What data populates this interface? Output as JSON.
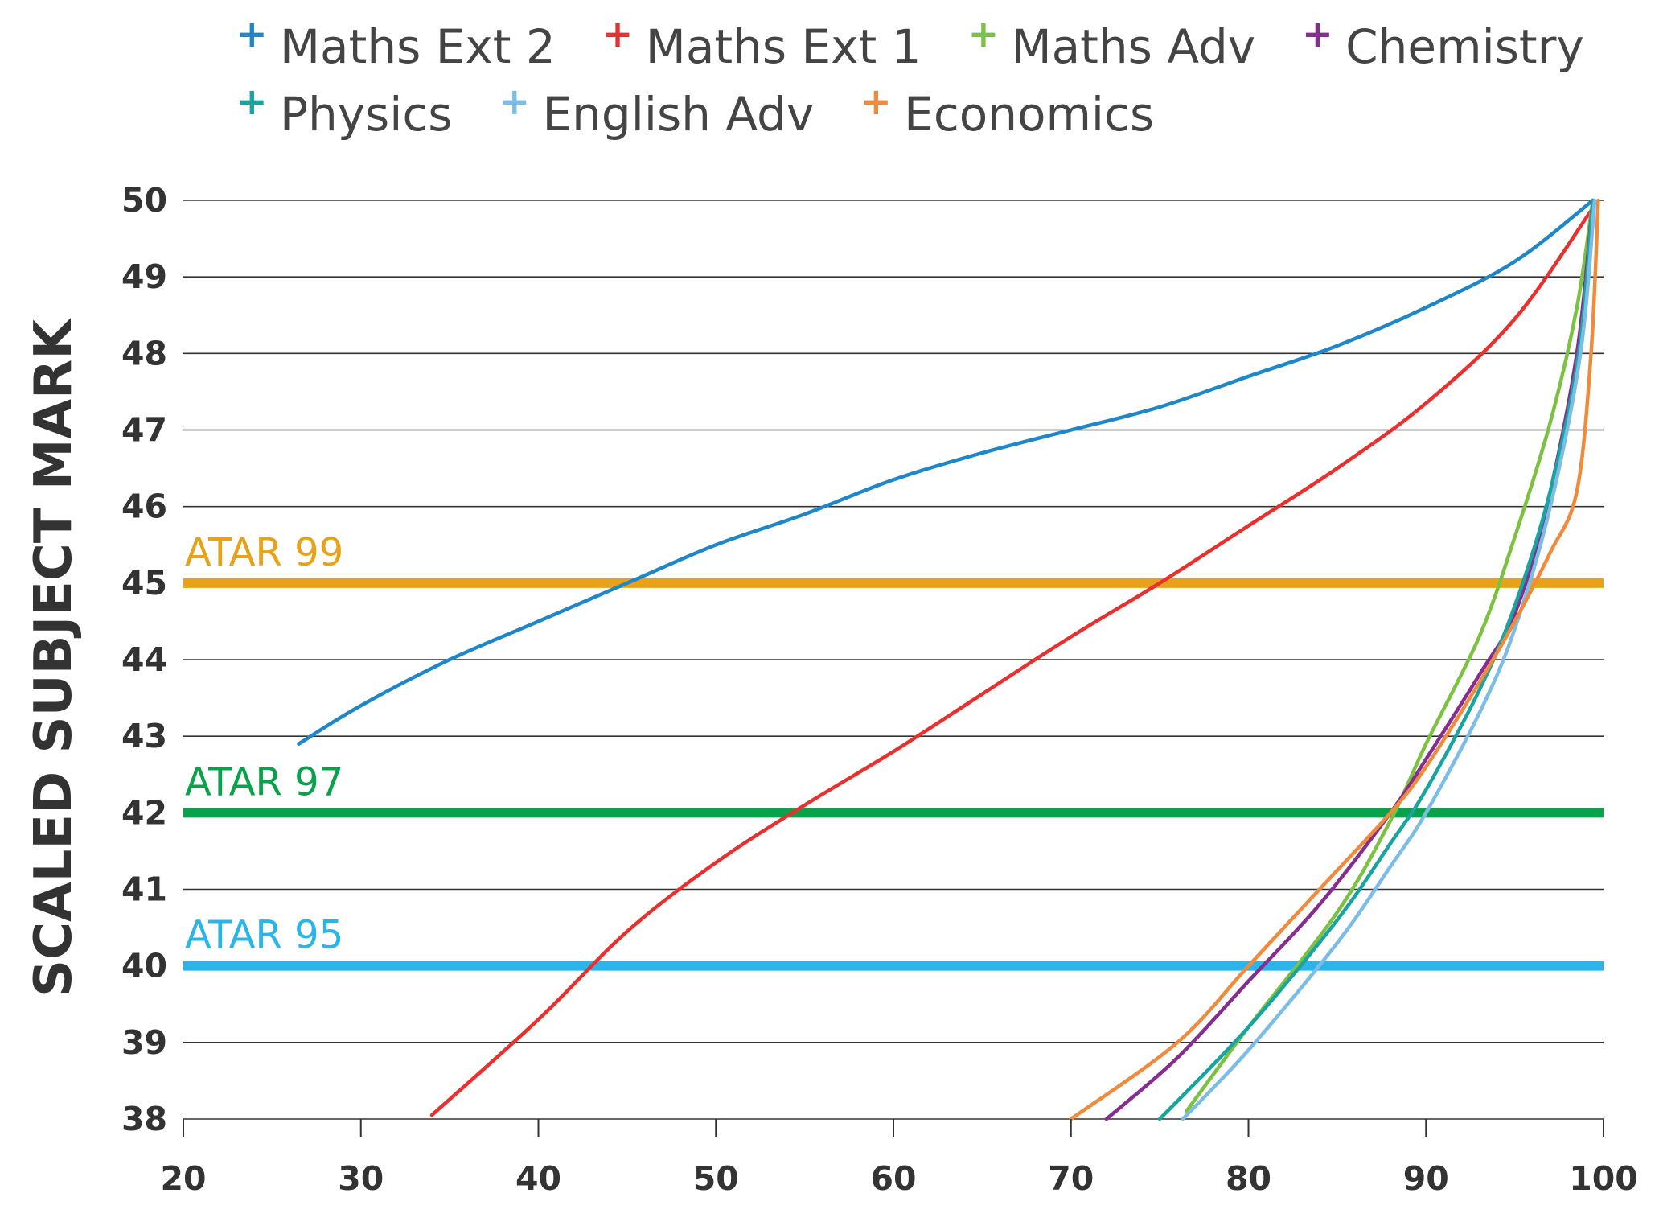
{
  "chart_data": {
    "type": "line",
    "title": "",
    "xlabel": "",
    "ylabel": "SCALED SUBJECT MARK",
    "xlim": [
      20,
      100
    ],
    "ylim": [
      38,
      50
    ],
    "x_ticks": [
      20,
      30,
      40,
      50,
      60,
      70,
      80,
      90,
      100
    ],
    "y_ticks": [
      38,
      39,
      40,
      41,
      42,
      43,
      44,
      45,
      46,
      47,
      48,
      49,
      50
    ],
    "grid": "horizontal",
    "legend_position": "top",
    "reference_lines": [
      {
        "label": "ATAR 99",
        "y": 45,
        "color": "#e8a21a"
      },
      {
        "label": "ATAR 97",
        "y": 42,
        "color": "#0aa14b"
      },
      {
        "label": "ATAR 95",
        "y": 40,
        "color": "#2bb4ea"
      }
    ],
    "series": [
      {
        "name": "Maths Ext 2",
        "color": "#1f87c9",
        "points": [
          [
            26.5,
            42.9
          ],
          [
            30,
            43.4
          ],
          [
            35,
            44.0
          ],
          [
            40,
            44.5
          ],
          [
            45,
            45.0
          ],
          [
            50,
            45.5
          ],
          [
            55,
            45.9
          ],
          [
            60,
            46.35
          ],
          [
            65,
            46.7
          ],
          [
            70,
            47.0
          ],
          [
            75,
            47.3
          ],
          [
            80,
            47.7
          ],
          [
            85,
            48.1
          ],
          [
            90,
            48.6
          ],
          [
            95,
            49.2
          ],
          [
            99.4,
            50.0
          ]
        ]
      },
      {
        "name": "Maths Ext 1",
        "color": "#e8312f",
        "points": [
          [
            34,
            38.05
          ],
          [
            40,
            39.3
          ],
          [
            45,
            40.45
          ],
          [
            50,
            41.35
          ],
          [
            55,
            42.1
          ],
          [
            60,
            42.8
          ],
          [
            65,
            43.55
          ],
          [
            70,
            44.3
          ],
          [
            75,
            45.0
          ],
          [
            80,
            45.75
          ],
          [
            85,
            46.5
          ],
          [
            90,
            47.35
          ],
          [
            95,
            48.45
          ],
          [
            99.4,
            49.9
          ]
        ]
      },
      {
        "name": "Maths Adv",
        "color": "#7dc142",
        "points": [
          [
            76.5,
            38.1
          ],
          [
            80,
            39.2
          ],
          [
            85,
            40.7
          ],
          [
            88,
            41.9
          ],
          [
            90,
            42.9
          ],
          [
            93,
            44.3
          ],
          [
            95,
            45.6
          ],
          [
            97,
            47.1
          ],
          [
            98.5,
            48.6
          ],
          [
            99.4,
            50.0
          ]
        ]
      },
      {
        "name": "Chemistry",
        "color": "#862e90",
        "points": [
          [
            72,
            38.0
          ],
          [
            76,
            38.8
          ],
          [
            80,
            39.8
          ],
          [
            84,
            40.8
          ],
          [
            88,
            42.0
          ],
          [
            90,
            42.7
          ],
          [
            93,
            43.8
          ],
          [
            95,
            44.6
          ],
          [
            96.8,
            46.0
          ],
          [
            98.5,
            48.0
          ],
          [
            99.4,
            50.0
          ]
        ]
      },
      {
        "name": "Physics",
        "color": "#1aa4a0",
        "points": [
          [
            75,
            38.0
          ],
          [
            80,
            39.2
          ],
          [
            85,
            40.6
          ],
          [
            88,
            41.6
          ],
          [
            90,
            42.3
          ],
          [
            93,
            43.6
          ],
          [
            95,
            44.7
          ],
          [
            97,
            46.2
          ],
          [
            98.6,
            48.0
          ],
          [
            99.4,
            50.0
          ]
        ]
      },
      {
        "name": "English Adv",
        "color": "#7bbde6",
        "points": [
          [
            76.3,
            38.0
          ],
          [
            80,
            38.9
          ],
          [
            85,
            40.3
          ],
          [
            88,
            41.3
          ],
          [
            90,
            42.0
          ],
          [
            93,
            43.3
          ],
          [
            95,
            44.4
          ],
          [
            97,
            46.0
          ],
          [
            98.7,
            48.0
          ],
          [
            99.5,
            50.0
          ]
        ]
      },
      {
        "name": "Economics",
        "color": "#f08a3c",
        "points": [
          [
            70,
            38.0
          ],
          [
            76,
            39.0
          ],
          [
            80,
            40.0
          ],
          [
            84,
            41.0
          ],
          [
            88,
            42.0
          ],
          [
            90,
            42.6
          ],
          [
            93,
            43.7
          ],
          [
            95,
            44.5
          ],
          [
            97,
            45.4
          ],
          [
            98.5,
            46.2
          ],
          [
            99.3,
            48.0
          ],
          [
            99.7,
            50.0
          ]
        ]
      }
    ]
  }
}
